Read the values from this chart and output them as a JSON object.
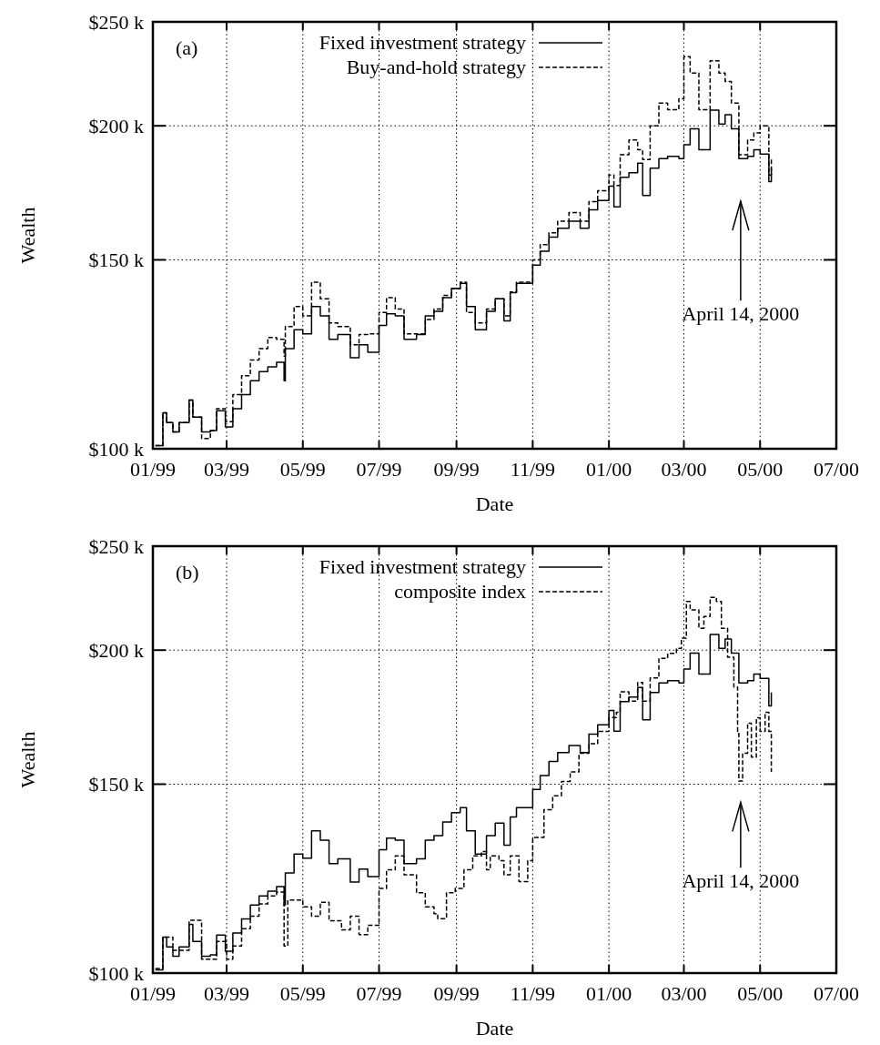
{
  "chart_data": [
    {
      "type": "step",
      "xlabel": "Date",
      "ylabel": "Wealth",
      "log": "y",
      "grid": true,
      "legend": "top",
      "xlim": [
        "1999-01-01",
        "2000-07-01"
      ],
      "ylim": [
        100,
        250
      ],
      "xticks": [
        {
          "value": "1999-01-01",
          "label": "01/99"
        },
        {
          "value": "1999-03-01",
          "label": "03/99"
        },
        {
          "value": "1999-05-01",
          "label": "05/99"
        },
        {
          "value": "1999-07-01",
          "label": "07/99"
        },
        {
          "value": "1999-09-01",
          "label": "09/99"
        },
        {
          "value": "1999-11-01",
          "label": "11/99"
        },
        {
          "value": "2000-01-01",
          "label": "01/00"
        },
        {
          "value": "2000-03-01",
          "label": "03/00"
        },
        {
          "value": "2000-05-01",
          "label": "05/00"
        },
        {
          "value": "2000-07-01",
          "label": "07/00"
        }
      ],
      "yticks": [
        {
          "value": 100,
          "label": "$100 k"
        },
        {
          "value": 150,
          "label": "$150 k"
        },
        {
          "value": 200,
          "label": "$200 k"
        },
        {
          "value": 250,
          "label": "$250 k"
        }
      ],
      "annotations": [
        "(a)",
        "April 14, 2000"
      ],
      "x": [
        "1999-01-03",
        "1999-01-09",
        "1999-01-12",
        "1999-01-17",
        "1999-01-22",
        "1999-01-30",
        "1999-02-02",
        "1999-02-09",
        "1999-02-16",
        "1999-02-21",
        "1999-02-28",
        "1999-03-06",
        "1999-03-13",
        "1999-03-20",
        "1999-03-27",
        "1999-04-03",
        "1999-04-10",
        "1999-04-16",
        "1999-04-17",
        "1999-04-24",
        "1999-05-01",
        "1999-05-08",
        "1999-05-15",
        "1999-05-22",
        "1999-05-29",
        "1999-06-08",
        "1999-06-15",
        "1999-06-22",
        "1999-07-01",
        "1999-07-07",
        "1999-07-14",
        "1999-07-21",
        "1999-07-31",
        "1999-08-07",
        "1999-08-14",
        "1999-08-21",
        "1999-08-28",
        "1999-09-04",
        "1999-09-09",
        "1999-09-16",
        "1999-09-25",
        "1999-10-02",
        "1999-10-09",
        "1999-10-14",
        "1999-10-19",
        "1999-11-01",
        "1999-11-07",
        "1999-11-14",
        "1999-11-21",
        "1999-11-30",
        "1999-12-09",
        "1999-12-16",
        "1999-12-23",
        "2000-01-01",
        "2000-01-05",
        "2000-01-10",
        "2000-01-17",
        "2000-01-24",
        "2000-01-28",
        "2000-02-03",
        "2000-02-10",
        "2000-02-17",
        "2000-02-26",
        "2000-03-01",
        "2000-03-06",
        "2000-03-13",
        "2000-03-22",
        "2000-03-29",
        "2000-04-03",
        "2000-04-08",
        "2000-04-14",
        "2000-04-21",
        "2000-04-26",
        "2000-05-01",
        "2000-05-08",
        "2000-05-10"
      ],
      "series": [
        {
          "name": "Fixed investment strategy",
          "color": "#000000",
          "line_style": "solid",
          "values": [
            100.7,
            108,
            105.8,
            103.7,
            105.8,
            111,
            107,
            103.7,
            104,
            108.5,
            104.8,
            109,
            112.3,
            115.7,
            118,
            119.2,
            120.4,
            115.7,
            124,
            129.1,
            128,
            135.7,
            133,
            126.5,
            127.8,
            121.6,
            125,
            123,
            130.3,
            133.6,
            133,
            126.5,
            127.8,
            133,
            134.3,
            138.3,
            141.1,
            142.6,
            135.7,
            129.1,
            134.3,
            138,
            131.6,
            139.8,
            142.6,
            148.3,
            152.8,
            157.5,
            160.5,
            163,
            160.5,
            167,
            170.4,
            175.7,
            168.1,
            179.1,
            180.8,
            184.6,
            172.2,
            182.6,
            186.4,
            187.3,
            186.4,
            192,
            198.7,
            190,
            206.8,
            200.8,
            204.8,
            198.7,
            186.4,
            187.3,
            190,
            188.2,
            177.4,
            182.6
          ]
        },
        {
          "name": "Buy-and-hold strategy",
          "color": "#000000",
          "line_style": "dashed",
          "values": [
            100.7,
            108,
            105.8,
            103.7,
            105.8,
            111,
            107,
            102.2,
            104,
            109,
            106,
            112.3,
            117,
            121,
            124,
            127,
            126.5,
            122,
            130,
            135.7,
            133,
            143,
            138,
            131,
            130,
            125,
            127.8,
            128,
            134,
            138.3,
            135,
            128,
            128,
            132,
            135,
            139,
            141,
            143,
            134,
            131,
            135,
            138,
            133,
            140,
            143,
            150,
            155,
            159,
            163,
            166,
            163,
            170,
            174,
            180,
            176,
            188,
            194,
            190,
            186,
            200,
            210,
            207,
            212,
            232,
            224,
            207,
            230,
            224,
            220,
            210,
            188,
            194,
            197,
            200,
            180,
            186
          ]
        }
      ]
    },
    {
      "type": "step",
      "xlabel": "Date",
      "ylabel": "Wealth",
      "log": "y",
      "grid": true,
      "legend": "top",
      "xlim": [
        "1999-01-01",
        "2000-07-01"
      ],
      "ylim": [
        100,
        250
      ],
      "xticks": [
        {
          "value": "1999-01-01",
          "label": "01/99"
        },
        {
          "value": "1999-03-01",
          "label": "03/99"
        },
        {
          "value": "1999-05-01",
          "label": "05/99"
        },
        {
          "value": "1999-07-01",
          "label": "07/99"
        },
        {
          "value": "1999-09-01",
          "label": "09/99"
        },
        {
          "value": "1999-11-01",
          "label": "11/99"
        },
        {
          "value": "2000-01-01",
          "label": "01/00"
        },
        {
          "value": "2000-03-01",
          "label": "03/00"
        },
        {
          "value": "2000-05-01",
          "label": "05/00"
        },
        {
          "value": "2000-07-01",
          "label": "07/00"
        }
      ],
      "yticks": [
        {
          "value": 100,
          "label": "$100 k"
        },
        {
          "value": 150,
          "label": "$150 k"
        },
        {
          "value": 200,
          "label": "$200 k"
        },
        {
          "value": 250,
          "label": "$250 k"
        }
      ],
      "annotations": [
        "(b)",
        "April 14, 2000"
      ],
      "series": [
        {
          "name": "Fixed investment strategy",
          "color": "#000000",
          "line_style": "solid",
          "x": [
            "1999-01-03",
            "1999-01-09",
            "1999-01-12",
            "1999-01-17",
            "1999-01-22",
            "1999-01-30",
            "1999-02-02",
            "1999-02-09",
            "1999-02-16",
            "1999-02-21",
            "1999-02-28",
            "1999-03-06",
            "1999-03-13",
            "1999-03-20",
            "1999-03-27",
            "1999-04-03",
            "1999-04-10",
            "1999-04-16",
            "1999-04-17",
            "1999-04-24",
            "1999-05-01",
            "1999-05-08",
            "1999-05-15",
            "1999-05-22",
            "1999-05-29",
            "1999-06-08",
            "1999-06-15",
            "1999-06-22",
            "1999-07-01",
            "1999-07-07",
            "1999-07-14",
            "1999-07-21",
            "1999-07-31",
            "1999-08-07",
            "1999-08-14",
            "1999-08-21",
            "1999-08-28",
            "1999-09-04",
            "1999-09-09",
            "1999-09-16",
            "1999-09-25",
            "1999-10-02",
            "1999-10-09",
            "1999-10-14",
            "1999-10-19",
            "1999-11-01",
            "1999-11-07",
            "1999-11-14",
            "1999-11-21",
            "1999-11-30",
            "1999-12-09",
            "1999-12-16",
            "1999-12-23",
            "2000-01-01",
            "2000-01-05",
            "2000-01-10",
            "2000-01-17",
            "2000-01-24",
            "2000-01-28",
            "2000-02-03",
            "2000-02-10",
            "2000-02-17",
            "2000-02-26",
            "2000-03-01",
            "2000-03-06",
            "2000-03-13",
            "2000-03-22",
            "2000-03-29",
            "2000-04-03",
            "2000-04-08",
            "2000-04-14",
            "2000-04-21",
            "2000-04-26",
            "2000-05-01",
            "2000-05-08",
            "2000-05-10"
          ],
          "values": [
            100.7,
            108,
            105.8,
            103.7,
            105.8,
            111,
            107,
            103.7,
            104,
            108.5,
            104.8,
            109,
            112.3,
            115.7,
            118,
            119.2,
            120.4,
            115.7,
            124,
            129.1,
            128,
            135.7,
            133,
            126.5,
            127.8,
            121.6,
            125,
            123,
            130.3,
            133.6,
            133,
            126.5,
            127.8,
            133,
            134.3,
            138.3,
            141.1,
            142.6,
            135.7,
            129.1,
            134.3,
            138,
            131.6,
            139.8,
            142.6,
            148.3,
            152.8,
            157.5,
            160.5,
            163,
            160.5,
            167,
            170.4,
            175.7,
            168.1,
            179.1,
            180.8,
            184.6,
            172.2,
            182.6,
            186.4,
            187.3,
            186.4,
            192,
            198.7,
            190,
            206.8,
            200.8,
            204.8,
            198.7,
            186.4,
            187.3,
            190,
            188.2,
            177.4,
            182.6
          ]
        },
        {
          "name": "composite index",
          "color": "#000000",
          "line_style": "dashed",
          "x": [
            "1999-01-03",
            "1999-01-09",
            "1999-01-17",
            "1999-01-30",
            "1999-02-09",
            "1999-02-21",
            "1999-03-01",
            "1999-03-06",
            "1999-03-13",
            "1999-03-20",
            "1999-03-27",
            "1999-04-03",
            "1999-04-10",
            "1999-04-16",
            "1999-04-19",
            "1999-05-01",
            "1999-05-08",
            "1999-05-15",
            "1999-05-22",
            "1999-06-01",
            "1999-06-08",
            "1999-06-15",
            "1999-06-22",
            "1999-07-01",
            "1999-07-07",
            "1999-07-14",
            "1999-07-21",
            "1999-07-31",
            "1999-08-07",
            "1999-08-14",
            "1999-08-17",
            "1999-08-24",
            "1999-08-31",
            "1999-09-07",
            "1999-09-14",
            "1999-09-21",
            "1999-09-25",
            "1999-09-28",
            "1999-10-05",
            "1999-10-09",
            "1999-10-14",
            "1999-10-21",
            "1999-10-28",
            "1999-11-01",
            "1999-11-10",
            "1999-11-17",
            "1999-11-24",
            "1999-12-01",
            "1999-12-08",
            "1999-12-16",
            "1999-12-23",
            "2000-01-01",
            "2000-01-07",
            "2000-01-10",
            "2000-01-17",
            "2000-01-24",
            "2000-01-28",
            "2000-02-03",
            "2000-02-10",
            "2000-02-17",
            "2000-02-24",
            "2000-02-28",
            "2000-03-03",
            "2000-03-06",
            "2000-03-13",
            "2000-03-17",
            "2000-03-22",
            "2000-03-27",
            "2000-03-31",
            "2000-04-05",
            "2000-04-10",
            "2000-04-13",
            "2000-04-14",
            "2000-04-17",
            "2000-04-21",
            "2000-04-24",
            "2000-04-28",
            "2000-05-01",
            "2000-05-05",
            "2000-05-08",
            "2000-05-10"
          ],
          "values": [
            101,
            108,
            105,
            112,
            103,
            107,
            103,
            106,
            110,
            113,
            116,
            118,
            119,
            106,
            117,
            115.3,
            113,
            116.4,
            111.9,
            109.7,
            113,
            108.6,
            110.8,
            119.9,
            124.8,
            128.6,
            123.5,
            118.8,
            115.3,
            113.6,
            112.4,
            118.8,
            119.9,
            124.8,
            128.6,
            129.8,
            124.8,
            128.6,
            127.3,
            123.5,
            128.6,
            121.7,
            127.3,
            133.8,
            142,
            146.3,
            150.9,
            154,
            160.3,
            163.6,
            168,
            173.1,
            175,
            182.9,
            179.3,
            186.6,
            179.3,
            188.4,
            196.5,
            198.6,
            200.8,
            205.2,
            222,
            218,
            209.6,
            215,
            224,
            222,
            209.6,
            197,
            184.8,
            168,
            151,
            160.3,
            171,
            159,
            173,
            168,
            175,
            168,
            154
          ]
        }
      ]
    }
  ]
}
